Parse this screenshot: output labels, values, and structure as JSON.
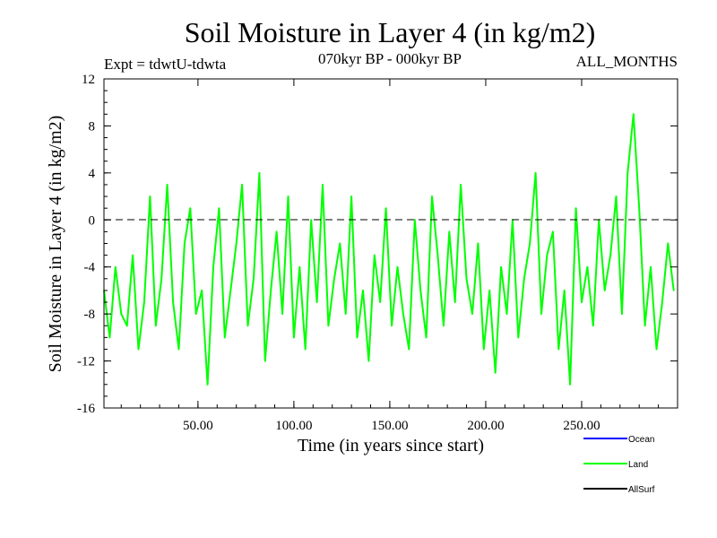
{
  "chart_data": {
    "type": "line",
    "title": "Soil Moisture in Layer 4 (in kg/m2)",
    "subtitle_left": "Expt = tdwtU-tdwta",
    "subtitle_center": "070kyr BP - 000kyr BP",
    "subtitle_right": "ALL_MONTHS",
    "xlabel": "Time (in years since start)",
    "ylabel": "Soil Moisture in Layer 4 (in kg/m2)",
    "xlim": [
      1,
      300
    ],
    "ylim": [
      -16,
      12
    ],
    "x_ticks": [
      50,
      100,
      150,
      200,
      250
    ],
    "x_tick_labels": [
      "50.00",
      "100.00",
      "150.00",
      "200.00",
      "250.00"
    ],
    "y_ticks": [
      12,
      8,
      4,
      0,
      -4,
      -8,
      -12,
      -16
    ],
    "y_tick_labels": [
      "12",
      "8",
      "4",
      "0",
      "-4",
      "-8",
      "-12",
      "-16"
    ],
    "zero_line": true,
    "legend": [
      "Ocean",
      "Land",
      "AllSurf"
    ],
    "legend_position": "bottom-right",
    "series": [
      {
        "name": "Land",
        "color": "#00ff00",
        "x": [
          1,
          4,
          7,
          10,
          13,
          16,
          19,
          22,
          25,
          28,
          31,
          34,
          37,
          40,
          43,
          46,
          49,
          52,
          55,
          58,
          61,
          64,
          67,
          70,
          73,
          76,
          79,
          82,
          85,
          88,
          91,
          94,
          97,
          100,
          103,
          106,
          109,
          112,
          115,
          118,
          121,
          124,
          127,
          130,
          133,
          136,
          139,
          142,
          145,
          148,
          151,
          154,
          157,
          160,
          163,
          166,
          169,
          172,
          175,
          178,
          181,
          184,
          187,
          190,
          193,
          196,
          199,
          202,
          205,
          208,
          211,
          214,
          217,
          220,
          223,
          226,
          229,
          232,
          235,
          238,
          241,
          244,
          247,
          250,
          253,
          256,
          259,
          262,
          265,
          268,
          271,
          274,
          277,
          280,
          283,
          286,
          289,
          292,
          295,
          298
        ],
        "values": [
          -6,
          -10,
          -4,
          -8,
          -9,
          -3,
          -11,
          -7,
          2,
          -9,
          -5,
          3,
          -7,
          -11,
          -2,
          1,
          -8,
          -6,
          -14,
          -4,
          1,
          -10,
          -6,
          -2,
          3,
          -9,
          -5,
          4,
          -12,
          -6,
          -1,
          -8,
          2,
          -10,
          -4,
          -11,
          0,
          -7,
          3,
          -9,
          -5,
          -2,
          -8,
          2,
          -10,
          -6,
          -12,
          -3,
          -7,
          1,
          -9,
          -4,
          -8,
          -11,
          0,
          -6,
          -10,
          2,
          -3,
          -9,
          -1,
          -7,
          3,
          -5,
          -8,
          -2,
          -11,
          -6,
          -13,
          -4,
          -8,
          0,
          -10,
          -5,
          -2,
          4,
          -8,
          -3,
          -1,
          -11,
          -6,
          -14,
          1,
          -7,
          -4,
          -9,
          0,
          -6,
          -3,
          2,
          -8,
          4,
          9,
          1,
          -9,
          -4,
          -11,
          -7,
          -2,
          -6
        ]
      },
      {
        "name": "Ocean",
        "color": "#0000ff",
        "values": []
      },
      {
        "name": "AllSurf",
        "color": "#000000",
        "values": []
      }
    ]
  }
}
